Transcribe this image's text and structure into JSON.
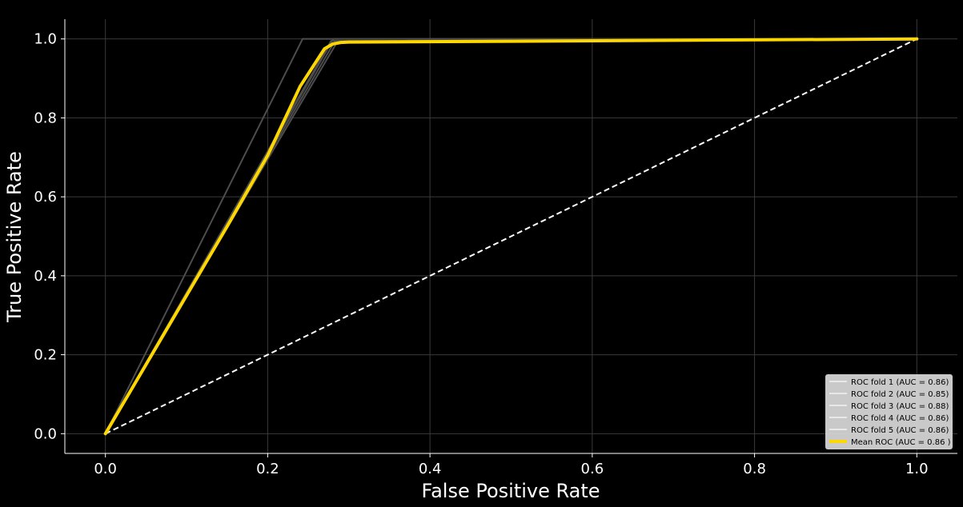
{
  "chart_data": {
    "type": "line",
    "title": "",
    "xlabel": "False Positive Rate",
    "ylabel": "True Positive Rate",
    "xlim": [
      -0.05,
      1.05
    ],
    "ylim": [
      -0.05,
      1.05
    ],
    "xticks": [
      "0.0",
      "0.2",
      "0.4",
      "0.6",
      "0.8",
      "1.0"
    ],
    "yticks": [
      "0.0",
      "0.2",
      "0.4",
      "0.6",
      "0.8",
      "1.0"
    ],
    "grid": true,
    "legend_position": "bottom-right",
    "series": [
      {
        "name": "ROC fold 1 (AUC = 0.86)",
        "color": "#4d4d4d",
        "x": [
          0.0,
          0.281,
          1.0
        ],
        "y": [
          0.0,
          1.0,
          1.0
        ]
      },
      {
        "name": "ROC fold 2 (AUC = 0.85)",
        "color": "#4d4d4d",
        "x": [
          0.0,
          0.285,
          1.0
        ],
        "y": [
          0.0,
          0.99,
          1.0
        ]
      },
      {
        "name": "ROC fold 3 (AUC = 0.88)",
        "color": "#4d4d4d",
        "x": [
          0.0,
          0.243,
          1.0
        ],
        "y": [
          0.0,
          1.0,
          1.0
        ]
      },
      {
        "name": "ROC fold 4 (AUC = 0.86)",
        "color": "#4d4d4d",
        "x": [
          0.0,
          0.278,
          1.0
        ],
        "y": [
          0.0,
          0.995,
          1.0
        ]
      },
      {
        "name": "ROC fold 5 (AUC = 0.86)",
        "color": "#4d4d4d",
        "x": [
          0.0,
          0.283,
          1.0
        ],
        "y": [
          0.0,
          0.995,
          1.0
        ]
      },
      {
        "name": "Mean ROC (AUC = 0.86 )",
        "color": "#ffd700",
        "x": [
          0.0,
          0.05,
          0.1,
          0.15,
          0.2,
          0.24,
          0.27,
          0.28,
          0.29,
          0.3,
          0.5,
          1.0
        ],
        "y": [
          0.0,
          0.175,
          0.35,
          0.525,
          0.705,
          0.88,
          0.975,
          0.987,
          0.991,
          0.992,
          0.994,
          1.0
        ]
      }
    ],
    "reference_line": {
      "color": "#ffffff",
      "x": [
        0.0,
        1.0
      ],
      "y": [
        0.0,
        1.0
      ]
    }
  }
}
